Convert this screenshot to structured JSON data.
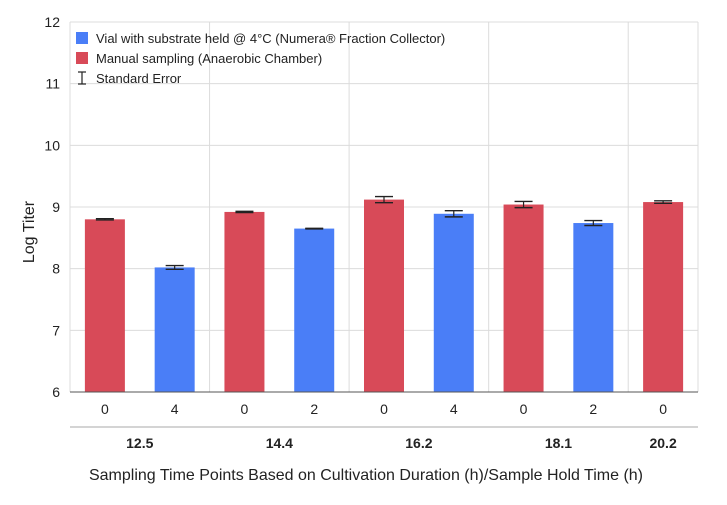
{
  "chart_data": {
    "type": "bar",
    "ylabel": "Log Titer",
    "xlabel": "Sampling Time Points Based on Cultivation Duration (h)/Sample Hold Time (h)",
    "ylim": [
      6,
      12
    ],
    "yticks": [
      "6",
      "7",
      "8",
      "9",
      "10",
      "11",
      "12"
    ],
    "grid": true,
    "legend_position": "top-left",
    "legend": [
      {
        "label": "Vial with substrate held @ 4°C (Numera® Fraction Collector)",
        "color": "#4a7ef7",
        "kind": "swatch"
      },
      {
        "label": "Manual sampling (Anaerobic Chamber)",
        "color": "#d84a58",
        "kind": "swatch"
      },
      {
        "label": "Standard Error",
        "color": "#222222",
        "kind": "errorbar"
      }
    ],
    "groups": [
      "12.5",
      "14.4",
      "16.2",
      "18.1",
      "20.2"
    ],
    "bars": [
      {
        "label": "0",
        "group": "12.5",
        "value": 8.8,
        "error": 0.01,
        "series": "Manual sampling (Anaerobic Chamber)",
        "color": "#d84a58"
      },
      {
        "label": "4",
        "group": "12.5",
        "value": 8.02,
        "error": 0.03,
        "series": "Vial with substrate held @ 4°C (Numera® Fraction Collector)",
        "color": "#4a7ef7"
      },
      {
        "label": "0",
        "group": "14.4",
        "value": 8.92,
        "error": 0.01,
        "series": "Manual sampling (Anaerobic Chamber)",
        "color": "#d84a58"
      },
      {
        "label": "2",
        "group": "14.4",
        "value": 8.65,
        "error": 0.005,
        "series": "Vial with substrate held @ 4°C (Numera® Fraction Collector)",
        "color": "#4a7ef7"
      },
      {
        "label": "0",
        "group": "16.2",
        "value": 9.12,
        "error": 0.05,
        "series": "Manual sampling (Anaerobic Chamber)",
        "color": "#d84a58"
      },
      {
        "label": "4",
        "group": "16.2",
        "value": 8.89,
        "error": 0.05,
        "series": "Vial with substrate held @ 4°C (Numera® Fraction Collector)",
        "color": "#4a7ef7"
      },
      {
        "label": "0",
        "group": "18.1",
        "value": 9.04,
        "error": 0.05,
        "series": "Manual sampling (Anaerobic Chamber)",
        "color": "#d84a58"
      },
      {
        "label": "2",
        "group": "18.1",
        "value": 8.74,
        "error": 0.04,
        "series": "Vial with substrate held @ 4°C (Numera® Fraction Collector)",
        "color": "#4a7ef7"
      },
      {
        "label": "0",
        "group": "20.2",
        "value": 9.08,
        "error": 0.02,
        "series": "Manual sampling (Anaerobic Chamber)",
        "color": "#d84a58"
      }
    ]
  }
}
